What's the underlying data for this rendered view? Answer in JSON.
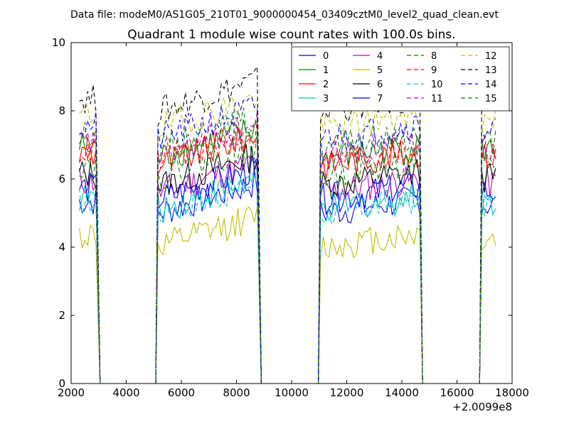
{
  "figure": {
    "suptitle": "Data file: modeM0/AS1G05_210T01_9000000454_03409cztM0_level2_quad_clean.evt",
    "title": "Quadrant 1 module wise count rates with 100.0s bins.",
    "x_offset_label": "+2.0099e8"
  },
  "chart_data": {
    "type": "line",
    "title": "Quadrant 1 module wise count rates with 100.0s bins.",
    "xlabel": "",
    "ylabel": "",
    "xlim": [
      2000,
      18000
    ],
    "ylim": [
      0,
      10
    ],
    "x_offset": 200990000,
    "xticks": [
      2000,
      4000,
      6000,
      8000,
      10000,
      12000,
      14000,
      16000,
      18000
    ],
    "yticks": [
      0,
      2,
      4,
      6,
      8,
      10
    ],
    "xtick_labels": [
      "2000",
      "4000",
      "6000",
      "8000",
      "10000",
      "12000",
      "14000",
      "16000",
      "18000"
    ],
    "ytick_labels": [
      "0",
      "2",
      "4",
      "6",
      "8",
      "10"
    ],
    "grid": false,
    "legend": {
      "placement": "top-right",
      "columns": 4
    },
    "segments": [
      {
        "start": 2300,
        "end": 2950,
        "off_end": 3050
      },
      {
        "start": 5150,
        "end": 8800,
        "off_end": 8900
      },
      {
        "start": 11050,
        "end": 14650,
        "off_end": 14750
      },
      {
        "start": 16900,
        "end": 17400,
        "off_end": 17400
      }
    ],
    "series": [
      {
        "name": "0",
        "color": "#0000ff",
        "dash": false,
        "level": 5.0
      },
      {
        "name": "1",
        "color": "#008000",
        "dash": false,
        "level": 6.6
      },
      {
        "name": "2",
        "color": "#ff0000",
        "dash": false,
        "level": 6.4
      },
      {
        "name": "3",
        "color": "#00bfbf",
        "dash": false,
        "level": 5.1
      },
      {
        "name": "4",
        "color": "#bf00bf",
        "dash": false,
        "level": 5.6
      },
      {
        "name": "5",
        "color": "#bfbf00",
        "dash": false,
        "level": 4.0
      },
      {
        "name": "6",
        "color": "#000000",
        "dash": false,
        "level": 5.8
      },
      {
        "name": "7",
        "color": "#0000ff",
        "dash": false,
        "level": 5.4
      },
      {
        "name": "8",
        "color": "#008000",
        "dash": true,
        "level": 6.9
      },
      {
        "name": "9",
        "color": "#ff0000",
        "dash": true,
        "level": 6.5
      },
      {
        "name": "10",
        "color": "#00bfbf",
        "dash": true,
        "level": 5.0
      },
      {
        "name": "11",
        "color": "#bf00bf",
        "dash": true,
        "level": 6.7
      },
      {
        "name": "12",
        "color": "#bfbf00",
        "dash": true,
        "level": 7.5
      },
      {
        "name": "13",
        "color": "#000000",
        "dash": true,
        "level": 8.0
      },
      {
        "name": "14",
        "color": "#0000ff",
        "dash": true,
        "level": 7.2
      },
      {
        "name": "15",
        "color": "#008000",
        "dash": true,
        "level": 6.1
      }
    ]
  }
}
